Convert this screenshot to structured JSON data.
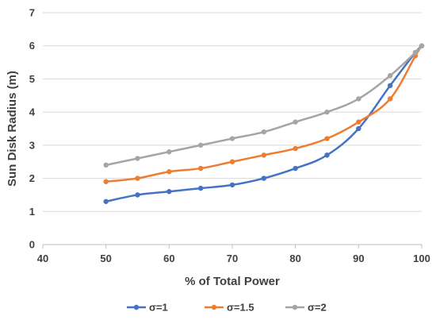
{
  "chart_data": {
    "type": "line",
    "title": "",
    "xlabel": "% of Total Power",
    "ylabel": "Sun Disk Radius (m)",
    "xlim": [
      40,
      100
    ],
    "ylim": [
      0,
      7
    ],
    "xticks": [
      40,
      50,
      60,
      70,
      80,
      90,
      100
    ],
    "yticks": [
      0,
      1,
      2,
      3,
      4,
      5,
      6,
      7
    ],
    "grid": "horizontal",
    "legend_position": "bottom",
    "x": [
      50,
      55,
      60,
      65,
      70,
      75,
      80,
      85,
      90,
      95,
      99,
      100
    ],
    "series": [
      {
        "name": "σ=1",
        "color": "#4472c4",
        "values": [
          1.3,
          1.5,
          1.6,
          1.7,
          1.8,
          2.0,
          2.3,
          2.7,
          3.5,
          4.8,
          5.8,
          6.0
        ]
      },
      {
        "name": "σ=1.5",
        "color": "#ed7d31",
        "values": [
          1.9,
          2.0,
          2.2,
          2.3,
          2.5,
          2.7,
          2.9,
          3.2,
          3.7,
          4.4,
          5.7,
          6.0
        ]
      },
      {
        "name": "σ=2",
        "color": "#a5a5a5",
        "values": [
          2.4,
          2.6,
          2.8,
          3.0,
          3.2,
          3.4,
          3.7,
          4.0,
          4.4,
          5.1,
          5.8,
          6.0
        ]
      }
    ]
  }
}
